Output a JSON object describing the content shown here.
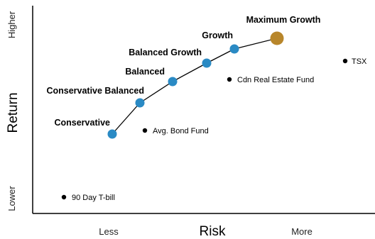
{
  "chart_data": {
    "type": "scatter",
    "xlabel": "Risk",
    "ylabel": "Return",
    "x_ticks": [
      "Less",
      "More"
    ],
    "y_ticks": [
      "Higher",
      "Lower"
    ],
    "grid": false,
    "portfolio_line": [
      {
        "name": "Conservative",
        "risk": 1.6,
        "return": 4.2
      },
      {
        "name": "Conservative Balanced",
        "risk": 2.25,
        "return": 5.45
      },
      {
        "name": "Balanced",
        "risk": 2.9,
        "return": 6.6
      },
      {
        "name": "Balanced Growth",
        "risk": 3.55,
        "return": 7.65
      },
      {
        "name": "Growth",
        "risk": 4.1,
        "return": 8.35
      },
      {
        "name": "Maximum Growth",
        "risk": 4.9,
        "return": 8.75,
        "color": "#b8862b",
        "size": "large"
      }
    ],
    "other_points": [
      {
        "name": "Avg. Bond Fund",
        "risk": 2.35,
        "return": 4.35
      },
      {
        "name": "Cdn Real Estate Fund",
        "risk": 4.0,
        "return": 6.75
      },
      {
        "name": "TSX",
        "risk": 6.3,
        "return": 7.9
      },
      {
        "name": "90 Day T-bill",
        "risk": 0.8,
        "return": 0.8
      }
    ],
    "colors": {
      "portfolio": "#2a8ac4",
      "max_growth": "#b8862b",
      "other": "#000000"
    }
  }
}
